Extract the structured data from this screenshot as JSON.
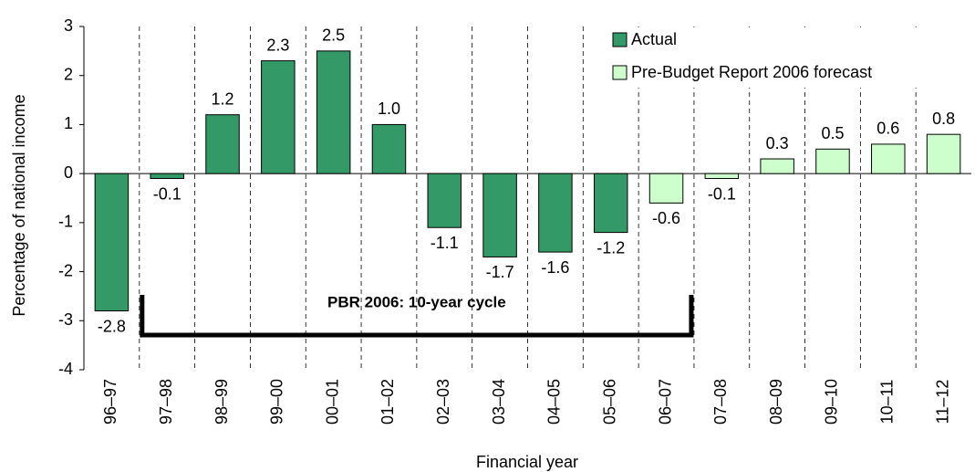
{
  "chart_data": {
    "type": "bar",
    "y_label": "Percentage of national income",
    "x_label": "Financial year",
    "categories": [
      "96–97",
      "97–98",
      "98–99",
      "99–00",
      "00–01",
      "01–02",
      "02–03",
      "03–04",
      "04–05",
      "05–06",
      "06–07",
      "07–08",
      "08–09",
      "09–10",
      "10–11",
      "11–12"
    ],
    "series": [
      {
        "name": "Actual",
        "color": "#339966",
        "values": [
          -2.8,
          -0.1,
          1.2,
          2.3,
          2.5,
          1.0,
          -1.1,
          -1.7,
          -1.6,
          -1.2,
          null,
          null,
          null,
          null,
          null,
          null
        ],
        "value_labels": [
          "-2.8",
          "-0.1",
          "1.2",
          "2.3",
          "2.5",
          "1.0",
          "-1.1",
          "-1.7",
          "-1.6",
          "-1.2",
          null,
          null,
          null,
          null,
          null,
          null
        ]
      },
      {
        "name": "Pre-Budget Report 2006 forecast",
        "color": "#ccffcc",
        "values": [
          null,
          null,
          null,
          null,
          null,
          null,
          null,
          null,
          null,
          null,
          -0.6,
          -0.1,
          0.3,
          0.5,
          0.6,
          0.8
        ],
        "value_labels": [
          null,
          null,
          null,
          null,
          null,
          null,
          null,
          null,
          null,
          null,
          "-0.6",
          "-0.1",
          "0.3",
          "0.5",
          "0.6",
          "0.8"
        ]
      }
    ],
    "annotation": "PBR 2006: 10-year cycle",
    "ylim": [
      -4,
      3
    ],
    "yticks": [
      -4,
      -3,
      -2,
      -1,
      0,
      1,
      2,
      3
    ]
  }
}
